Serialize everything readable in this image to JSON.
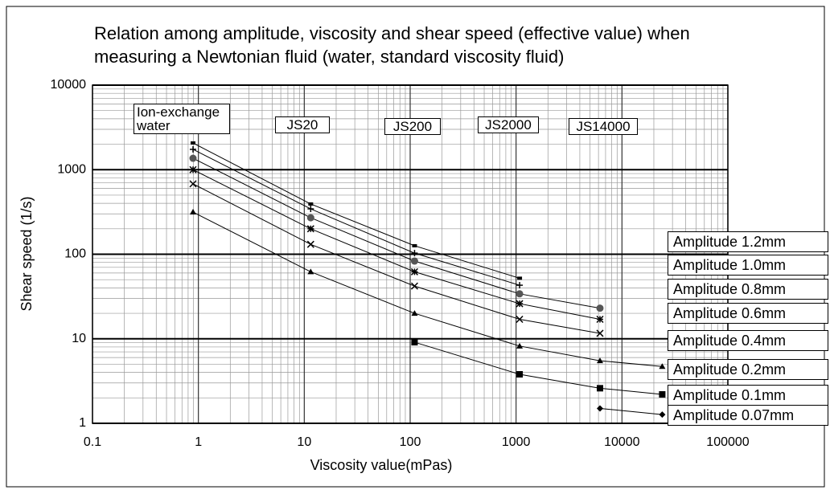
{
  "chart_data": {
    "type": "line",
    "title": "Relation among amplitude, viscosity and shear speed (effective value) when measuring a Newtonian fluid (water, standard viscosity fluid)",
    "x_label": "Viscosity value(mPas)",
    "y_label": "Shear speed (1/s)",
    "log_x": true,
    "log_y": true,
    "grid": true,
    "xlim": [
      0.1,
      100000
    ],
    "xticks": [
      0.1,
      1,
      10,
      100,
      1000,
      10000,
      100000
    ],
    "ylim": [
      1,
      10000
    ],
    "yticks": [
      1,
      10,
      100,
      1000,
      10000
    ],
    "annotations": [
      "Ion-exchange water",
      "JS20",
      "JS200",
      "JS2000",
      "JS14000"
    ],
    "series": [
      {
        "name": "Amplitude 1.2mm",
        "color": "#000000",
        "marker": "dash",
        "x": [
          0.89,
          11.5,
          110,
          1080
        ],
        "values": [
          2070,
          393,
          126,
          52
        ]
      },
      {
        "name": "Amplitude 1.0mm",
        "color": "#000000",
        "marker": "plus",
        "x": [
          0.89,
          11.5,
          110,
          1080
        ],
        "values": [
          1740,
          344,
          103,
          43
        ]
      },
      {
        "name": "Amplitude 0.8mm",
        "color": "#555555",
        "marker": "circle",
        "x": [
          0.89,
          11.5,
          110,
          1080,
          6200
        ],
        "values": [
          1365,
          270,
          83,
          34,
          23
        ]
      },
      {
        "name": "Amplitude 0.6mm",
        "color": "#000000",
        "marker": "star",
        "x": [
          0.89,
          11.5,
          110,
          1080,
          6200
        ],
        "values": [
          1000,
          200,
          62,
          26,
          17
        ]
      },
      {
        "name": "Amplitude 0.4mm",
        "color": "#000000",
        "marker": "cross",
        "x": [
          0.89,
          11.5,
          110,
          1080,
          6200
        ],
        "values": [
          680,
          131,
          42,
          17,
          11.6
        ]
      },
      {
        "name": "Amplitude 0.2mm",
        "color": "#000000",
        "marker": "triangle",
        "x": [
          0.89,
          11.5,
          110,
          1080,
          6200,
          24000
        ],
        "values": [
          315,
          62,
          20,
          8.2,
          5.5,
          4.7
        ]
      },
      {
        "name": "Amplitude 0.1mm",
        "color": "#000000",
        "marker": "square",
        "x": [
          110,
          1080,
          6200,
          24000
        ],
        "values": [
          9.1,
          3.8,
          2.6,
          2.2
        ]
      },
      {
        "name": "Amplitude 0.07mm",
        "color": "#000000",
        "marker": "diamond",
        "x": [
          6200,
          24000
        ],
        "values": [
          1.5,
          1.27
        ]
      }
    ]
  }
}
